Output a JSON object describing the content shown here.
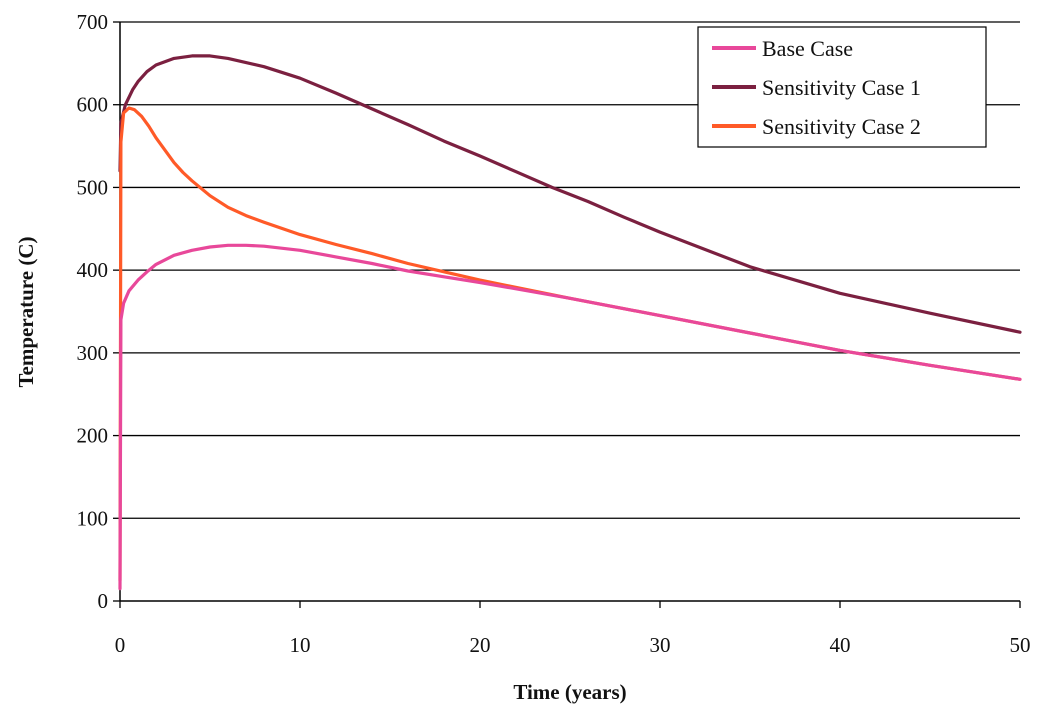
{
  "chart_data": {
    "type": "line",
    "xlabel": "Time (years)",
    "ylabel": "Temperature (C)",
    "xlim": [
      0,
      50
    ],
    "ylim": [
      0,
      700
    ],
    "x_ticks": [
      0,
      10,
      20,
      30,
      40,
      50
    ],
    "y_ticks": [
      0,
      100,
      200,
      300,
      400,
      500,
      600,
      700
    ],
    "grid": "horizontal",
    "legend_position": "top-right",
    "series": [
      {
        "name": "Base Case",
        "color": "#e8489a",
        "x": [
          0,
          0.05,
          0.2,
          0.5,
          1,
          1.5,
          2,
          3,
          4,
          5,
          6,
          7,
          8,
          10,
          12,
          14,
          16,
          18,
          20,
          25,
          30,
          35,
          40,
          45,
          50
        ],
        "y": [
          15,
          340,
          360,
          375,
          388,
          398,
          407,
          418,
          424,
          428,
          430,
          430,
          429,
          424,
          416,
          408,
          399,
          392,
          385,
          366,
          345,
          324,
          303,
          285,
          268
        ]
      },
      {
        "name": "Sensitivity Case 1",
        "color": "#7b2040",
        "x": [
          0,
          0.05,
          0.3,
          0.7,
          1,
          1.5,
          2,
          3,
          4,
          5,
          6,
          8,
          10,
          12,
          14,
          16,
          18,
          20,
          22,
          24,
          26,
          28,
          30,
          35,
          40,
          45,
          50
        ],
        "y": [
          520,
          578,
          600,
          618,
          628,
          640,
          648,
          656,
          659,
          659,
          656,
          646,
          632,
          614,
          595,
          576,
          556,
          538,
          519,
          500,
          483,
          464,
          446,
          404,
          372,
          348,
          325
        ]
      },
      {
        "name": "Sensitivity Case 2",
        "color": "#ff5a28",
        "x": [
          0,
          0.05,
          0.2,
          0.5,
          0.8,
          1.2,
          1.6,
          2,
          2.5,
          3,
          3.5,
          4,
          5,
          6,
          7,
          8,
          10,
          12,
          14,
          16,
          18,
          20,
          25,
          30,
          35,
          40,
          45,
          50
        ],
        "y": [
          25,
          555,
          590,
          596,
          594,
          586,
          574,
          560,
          545,
          530,
          518,
          508,
          490,
          476,
          466,
          458,
          443,
          431,
          420,
          408,
          398,
          388,
          366,
          345,
          324,
          303,
          285,
          268
        ]
      }
    ]
  }
}
